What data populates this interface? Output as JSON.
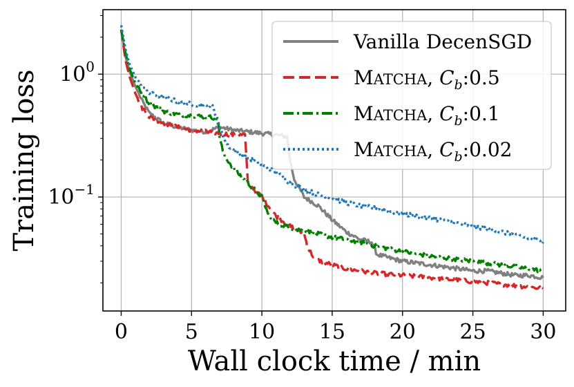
{
  "chart_data": {
    "type": "line",
    "title": "",
    "xlabel": "Wall clock time / min",
    "ylabel": "Training loss",
    "xlim": [
      -1.3,
      31.6
    ],
    "ylim": [
      0.0118,
      3.35
    ],
    "yscale": "log",
    "grid": true,
    "legend_position": "top-right",
    "x_ticks": [
      0,
      5,
      10,
      15,
      20,
      25,
      30
    ],
    "x_tick_labels": [
      "0",
      "5",
      "10",
      "15",
      "20",
      "25",
      "30"
    ],
    "y_ticks": [
      1,
      0.1
    ],
    "y_tick_labels": [
      {
        "base": "10",
        "exp": "0"
      },
      {
        "base": "10",
        "exp": "−1"
      }
    ],
    "series": [
      {
        "name": "Vanilla DecenSGD",
        "legend": {
          "text": "Vanilla DecenSGD"
        },
        "color": "#808080",
        "dash": "solid",
        "x": [
          0,
          0.3,
          0.6,
          1,
          1.5,
          2,
          3,
          4,
          5,
          6,
          7,
          8,
          9,
          10,
          11,
          11.8,
          12,
          12.3,
          13,
          14,
          15,
          16,
          17,
          17.8,
          18.2,
          19,
          20,
          21,
          22,
          23,
          24,
          25,
          26,
          27,
          28,
          29,
          30
        ],
        "y": [
          2.3,
          1.4,
          1.05,
          0.8,
          0.6,
          0.48,
          0.4,
          0.37,
          0.35,
          0.34,
          0.37,
          0.35,
          0.34,
          0.33,
          0.32,
          0.31,
          0.2,
          0.14,
          0.1,
          0.085,
          0.065,
          0.052,
          0.045,
          0.043,
          0.034,
          0.032,
          0.03,
          0.029,
          0.028,
          0.027,
          0.026,
          0.025,
          0.025,
          0.024,
          0.023,
          0.023,
          0.022
        ]
      },
      {
        "name": "MATCHA, Cb:0.5",
        "legend": {
          "sc_first": "M",
          "sc_rest": "ATCHA",
          "mid": ", ",
          "var": "C",
          "sub": "b",
          "val": ":0.5"
        },
        "color": "#d62728",
        "dash": "long-dash",
        "x": [
          0,
          0.3,
          0.6,
          1,
          1.5,
          2,
          3,
          4,
          5,
          6,
          7,
          8,
          8.8,
          9,
          9.3,
          10,
          11,
          12,
          13,
          13.3,
          13.8,
          15,
          16,
          18,
          20,
          22,
          24,
          26,
          28,
          30
        ],
        "y": [
          2.3,
          1.3,
          0.95,
          0.7,
          0.53,
          0.45,
          0.4,
          0.37,
          0.35,
          0.34,
          0.33,
          0.32,
          0.32,
          0.13,
          0.12,
          0.1,
          0.07,
          0.058,
          0.05,
          0.038,
          0.031,
          0.028,
          0.026,
          0.024,
          0.023,
          0.022,
          0.021,
          0.02,
          0.019,
          0.018
        ]
      },
      {
        "name": "MATCHA, Cb:0.1",
        "legend": {
          "sc_first": "M",
          "sc_rest": "ATCHA",
          "mid": ", ",
          "var": "C",
          "sub": "b",
          "val": ":0.1"
        },
        "color": "#008000",
        "dash": "dash-dot",
        "x": [
          0,
          0.3,
          0.6,
          1,
          1.5,
          2,
          3,
          4,
          5,
          6,
          6.9,
          7,
          7.3,
          8,
          9,
          10,
          10.5,
          11,
          12,
          13,
          14,
          15,
          16,
          17,
          18,
          20,
          22,
          24,
          26,
          28,
          30
        ],
        "y": [
          2.3,
          1.5,
          1.1,
          0.85,
          0.68,
          0.58,
          0.5,
          0.47,
          0.46,
          0.45,
          0.44,
          0.3,
          0.22,
          0.17,
          0.13,
          0.1,
          0.07,
          0.062,
          0.056,
          0.053,
          0.05,
          0.047,
          0.045,
          0.043,
          0.04,
          0.036,
          0.033,
          0.031,
          0.029,
          0.027,
          0.025
        ]
      },
      {
        "name": "MATCHA, Cb:0.02",
        "legend": {
          "sc_first": "M",
          "sc_rest": "ATCHA",
          "mid": ", ",
          "var": "C",
          "sub": "b",
          "val": ":0.02"
        },
        "color": "#1f77b4",
        "dash": "dotted",
        "x": [
          0,
          0.3,
          0.6,
          1,
          1.5,
          2,
          3,
          4,
          5,
          6,
          6.5,
          7,
          7.5,
          8,
          9,
          10,
          11,
          12,
          13,
          14,
          15,
          16,
          17,
          18,
          19,
          20,
          21,
          22,
          23,
          24,
          25,
          26,
          27,
          28,
          29,
          30
        ],
        "y": [
          2.5,
          1.6,
          1.2,
          0.95,
          0.8,
          0.7,
          0.65,
          0.6,
          0.57,
          0.55,
          0.55,
          0.36,
          0.27,
          0.24,
          0.21,
          0.18,
          0.16,
          0.13,
          0.115,
          0.105,
          0.097,
          0.09,
          0.085,
          0.081,
          0.077,
          0.073,
          0.07,
          0.067,
          0.064,
          0.061,
          0.058,
          0.055,
          0.052,
          0.049,
          0.046,
          0.043
        ]
      }
    ]
  }
}
